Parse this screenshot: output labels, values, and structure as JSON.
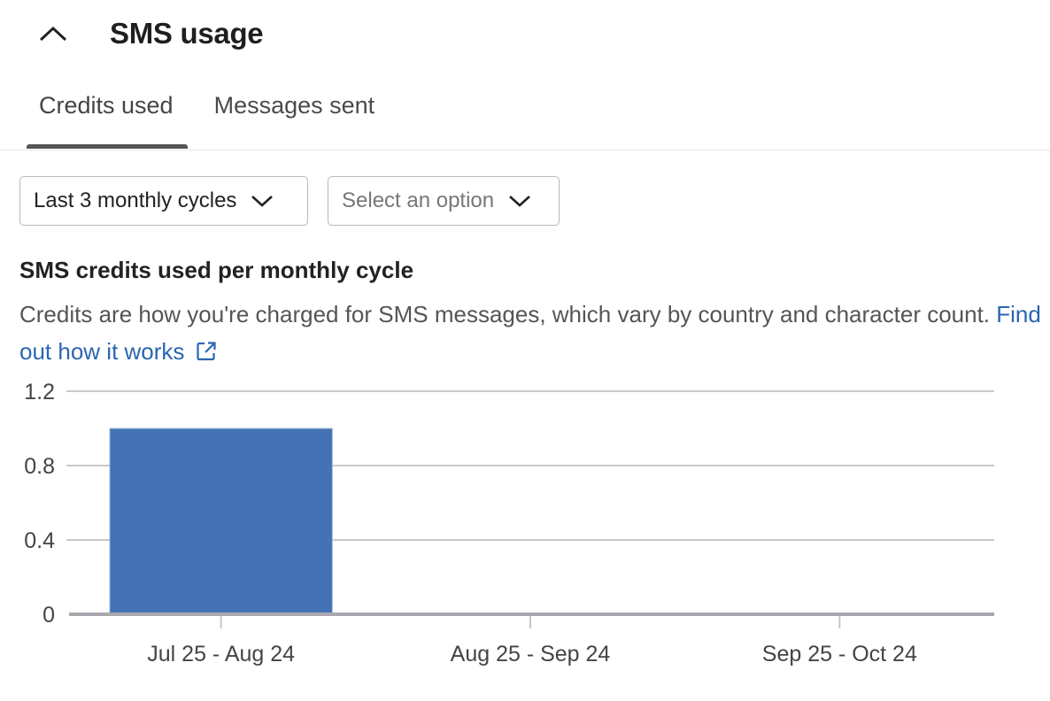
{
  "header": {
    "title": "SMS usage",
    "collapse_icon": "chevron-up-icon"
  },
  "tabs": [
    {
      "label": "Credits used",
      "active": true
    },
    {
      "label": "Messages sent",
      "active": false
    }
  ],
  "filters": {
    "period": {
      "value": "Last 3 monthly cycles"
    },
    "option": {
      "placeholder": "Select an option"
    }
  },
  "chart_section": {
    "title": "SMS credits used per monthly cycle",
    "description": "Credits are how you're charged for SMS messages, which vary by country and character count.",
    "link": "Find out how it works",
    "link_icon": "external-link-icon"
  },
  "chart_data": {
    "type": "bar",
    "categories": [
      "Jul 25 - Aug 24",
      "Aug 25 - Sep 24",
      "Sep 25 - Oct 24"
    ],
    "values": [
      1,
      0,
      0
    ],
    "ylim": [
      0,
      1.2
    ],
    "yticks": [
      0,
      0.4,
      0.8,
      1.2
    ],
    "ytick_labels": [
      "0",
      "0.4",
      "0.8",
      "1.2"
    ],
    "grid": true,
    "bar_color": "#4472b4"
  }
}
